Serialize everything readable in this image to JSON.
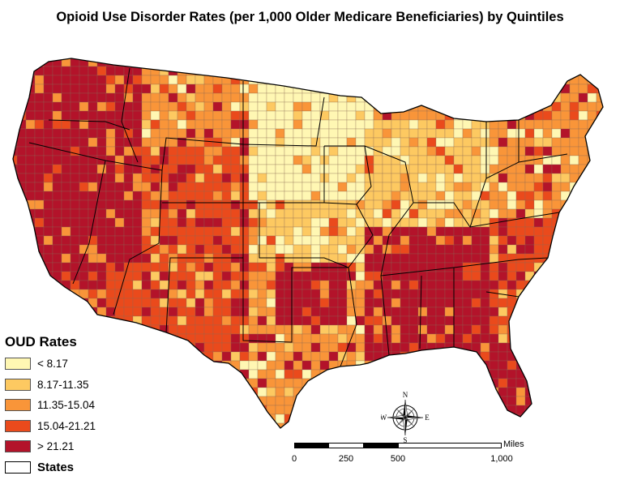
{
  "title": "Opioid Use Disorder Rates (per 1,000 Older Medicare Beneficiaries) by Quintiles",
  "legend": {
    "title": "OUD Rates",
    "items": [
      {
        "label": "< 8.17",
        "color": "#fff7b3"
      },
      {
        "label": "8.17-11.35",
        "color": "#fdc961"
      },
      {
        "label": "11.35-15.04",
        "color": "#f99539"
      },
      {
        "label": "15.04-21.21",
        "color": "#ea4a1c"
      },
      {
        "label": "> 21.21",
        "color": "#b3132a"
      }
    ],
    "boundary_label": "States"
  },
  "scale_bar": {
    "units": "Miles",
    "ticks": [
      "0",
      "250",
      "500",
      "1,000"
    ]
  },
  "compass": {
    "n": "N",
    "s": "S",
    "e": "E",
    "w": "W"
  },
  "colors": {
    "q1": "#fff7b3",
    "q2": "#fdc961",
    "q3": "#f99539",
    "q4": "#ea4a1c",
    "q5": "#b3132a",
    "state_border": "#000000",
    "county_border": "#8a6a55"
  }
}
